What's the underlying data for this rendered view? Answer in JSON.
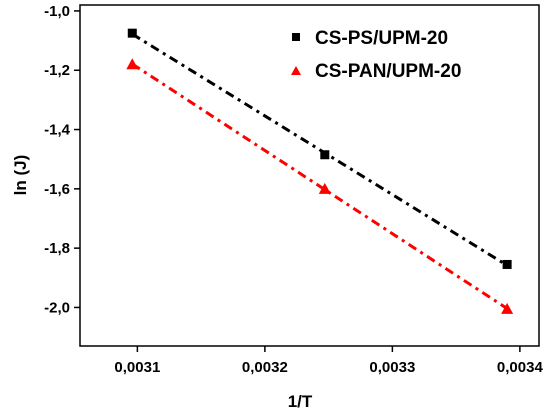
{
  "chart_data": {
    "type": "scatter",
    "xlabel": "1/T",
    "ylabel": "ln (J)",
    "xlim": [
      0.003055,
      0.003415
    ],
    "ylim": [
      -2.13,
      -0.98
    ],
    "x_ticks": [
      0.0031,
      0.0032,
      0.0033,
      0.0034
    ],
    "x_tick_labels": [
      "0,0031",
      "0,0032",
      "0,0033",
      "0,0034"
    ],
    "y_ticks": [
      -1.0,
      -1.2,
      -1.4,
      -1.6,
      -1.8,
      -2.0
    ],
    "y_tick_labels": [
      "-1,0",
      "-1,2",
      "-1,4",
      "-1,6",
      "-1,8",
      "-2,0"
    ],
    "grid": false,
    "legend_position": "top-right",
    "series": [
      {
        "name": "CS-PS/UPM-20",
        "color": "#000000",
        "marker": "square",
        "line": "dash-dot linear fit",
        "x": [
          0.003096,
          0.003247,
          0.00339
        ],
        "y": [
          -1.075,
          -1.485,
          -1.855
        ]
      },
      {
        "name": "CS-PAN/UPM-20",
        "color": "#ff0000",
        "marker": "triangle",
        "line": "dash-dot linear fit",
        "x": [
          0.003096,
          0.003247,
          0.00339
        ],
        "y": [
          -1.18,
          -1.6,
          -2.005
        ]
      }
    ]
  }
}
